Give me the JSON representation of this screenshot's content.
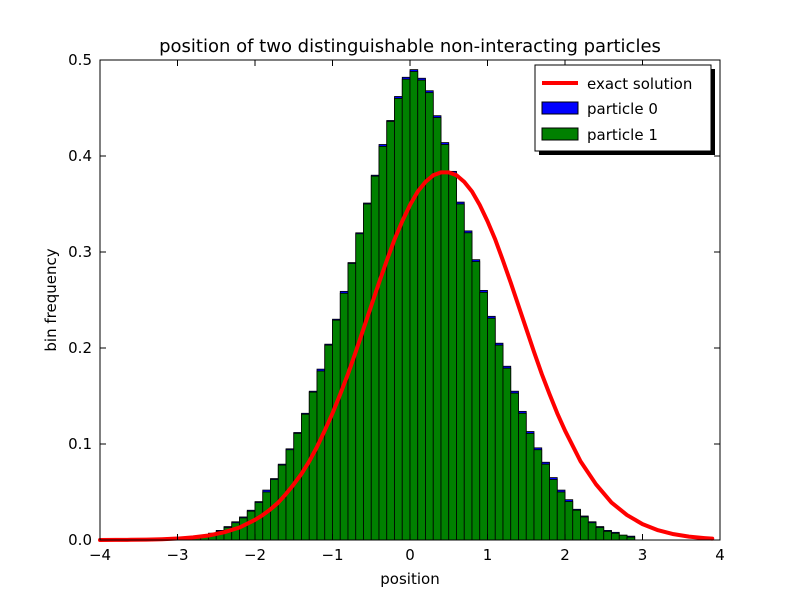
{
  "chart_data": {
    "type": "bar",
    "title": "position of two distinguishable non-interacting particles",
    "xlabel": "position",
    "ylabel": "bin frequency",
    "xlim": [
      -4,
      4
    ],
    "ylim": [
      0,
      0.5
    ],
    "xticks": [
      -4,
      -3,
      -2,
      -1,
      0,
      1,
      2,
      3,
      4
    ],
    "xtick_labels": [
      "−4",
      "−3",
      "−2",
      "−1",
      "0",
      "1",
      "2",
      "3",
      "4"
    ],
    "yticks": [
      0.0,
      0.1,
      0.2,
      0.3,
      0.4,
      0.5
    ],
    "ytick_labels": [
      "0.0",
      "0.1",
      "0.2",
      "0.3",
      "0.4",
      "0.5"
    ],
    "grid": false,
    "legend_position": "top-right",
    "bin_width": 0.1,
    "bin_centers": [
      -2.85,
      -2.75,
      -2.65,
      -2.55,
      -2.45,
      -2.35,
      -2.25,
      -2.15,
      -2.05,
      -1.95,
      -1.85,
      -1.75,
      -1.65,
      -1.55,
      -1.45,
      -1.35,
      -1.25,
      -1.15,
      -1.05,
      -0.95,
      -0.85,
      -0.75,
      -0.65,
      -0.55,
      -0.45,
      -0.35,
      -0.25,
      -0.15,
      -0.05,
      0.05,
      0.15,
      0.25,
      0.35,
      0.45,
      0.55,
      0.65,
      0.75,
      0.85,
      0.95,
      1.05,
      1.15,
      1.25,
      1.35,
      1.45,
      1.55,
      1.65,
      1.75,
      1.85,
      1.95,
      2.05,
      2.15,
      2.25,
      2.35,
      2.45,
      2.55,
      2.65,
      2.75,
      2.85
    ],
    "series": [
      {
        "name": "particle 0",
        "kind": "histogram",
        "color": "#0000ff",
        "values": [
          0.003,
          0.004,
          0.005,
          0.007,
          0.01,
          0.014,
          0.019,
          0.024,
          0.031,
          0.04,
          0.052,
          0.064,
          0.079,
          0.095,
          0.112,
          0.132,
          0.155,
          0.178,
          0.204,
          0.23,
          0.259,
          0.289,
          0.32,
          0.351,
          0.38,
          0.412,
          0.437,
          0.462,
          0.482,
          0.49,
          0.481,
          0.468,
          0.442,
          0.414,
          0.384,
          0.352,
          0.322,
          0.292,
          0.26,
          0.233,
          0.205,
          0.181,
          0.155,
          0.134,
          0.113,
          0.096,
          0.081,
          0.065,
          0.052,
          0.042,
          0.032,
          0.025,
          0.019,
          0.014,
          0.01,
          0.008,
          0.005,
          0.004
        ]
      },
      {
        "name": "particle 1",
        "kind": "histogram",
        "color": "#008000",
        "values": [
          0.002,
          0.003,
          0.005,
          0.007,
          0.009,
          0.013,
          0.018,
          0.023,
          0.03,
          0.039,
          0.05,
          0.063,
          0.078,
          0.094,
          0.111,
          0.131,
          0.154,
          0.176,
          0.203,
          0.229,
          0.257,
          0.288,
          0.319,
          0.35,
          0.379,
          0.41,
          0.436,
          0.46,
          0.48,
          0.488,
          0.479,
          0.466,
          0.44,
          0.412,
          0.382,
          0.35,
          0.32,
          0.29,
          0.258,
          0.231,
          0.203,
          0.179,
          0.153,
          0.132,
          0.111,
          0.094,
          0.079,
          0.063,
          0.05,
          0.04,
          0.031,
          0.024,
          0.018,
          0.013,
          0.009,
          0.007,
          0.005,
          0.003
        ]
      },
      {
        "name": "exact solution",
        "kind": "line",
        "color": "#ff0000",
        "x": [
          -4.0,
          -3.8,
          -3.6,
          -3.4,
          -3.2,
          -3.0,
          -2.8,
          -2.6,
          -2.4,
          -2.2,
          -2.0,
          -1.9,
          -1.8,
          -1.7,
          -1.6,
          -1.5,
          -1.4,
          -1.3,
          -1.2,
          -1.1,
          -1.0,
          -0.9,
          -0.8,
          -0.7,
          -0.6,
          -0.5,
          -0.4,
          -0.3,
          -0.2,
          -0.1,
          0.0,
          0.1,
          0.2,
          0.3,
          0.4,
          0.5,
          0.6,
          0.7,
          0.8,
          0.9,
          1.0,
          1.1,
          1.2,
          1.3,
          1.4,
          1.5,
          1.6,
          1.7,
          1.8,
          1.9,
          2.0,
          2.2,
          2.4,
          2.6,
          2.8,
          3.0,
          3.2,
          3.4,
          3.6,
          3.8,
          3.9
        ],
        "y": [
          0.0,
          0.0001,
          0.0002,
          0.0004,
          0.0008,
          0.0015,
          0.0027,
          0.0047,
          0.008,
          0.013,
          0.021,
          0.026,
          0.032,
          0.039,
          0.048,
          0.058,
          0.069,
          0.082,
          0.097,
          0.114,
          0.132,
          0.152,
          0.173,
          0.196,
          0.22,
          0.244,
          0.268,
          0.291,
          0.313,
          0.332,
          0.349,
          0.363,
          0.373,
          0.38,
          0.383,
          0.383,
          0.38,
          0.373,
          0.363,
          0.349,
          0.332,
          0.313,
          0.291,
          0.268,
          0.244,
          0.22,
          0.196,
          0.173,
          0.152,
          0.132,
          0.114,
          0.082,
          0.058,
          0.039,
          0.026,
          0.0165,
          0.0102,
          0.0061,
          0.0035,
          0.002,
          0.0014
        ]
      }
    ]
  }
}
